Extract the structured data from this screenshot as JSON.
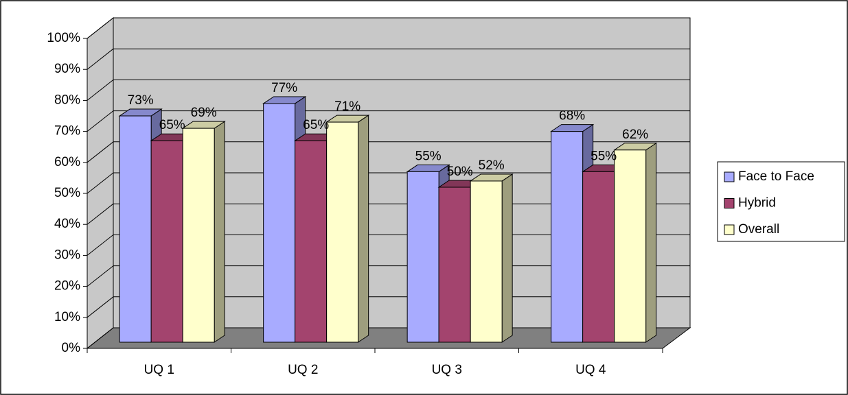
{
  "chart_data": {
    "type": "bar3d",
    "categories": [
      "UQ 1",
      "UQ 2",
      "UQ 3",
      "UQ 4"
    ],
    "series": [
      {
        "name": "Face to Face",
        "color": "#a8abff",
        "values": [
          73,
          77,
          55,
          68
        ],
        "value_labels": [
          "73%",
          "77%",
          "55%",
          "68%"
        ]
      },
      {
        "name": "Hybrid",
        "color": "#a3446e",
        "values": [
          65,
          65,
          50,
          55
        ],
        "value_labels": [
          "65%",
          "65%",
          "50%",
          "55%"
        ]
      },
      {
        "name": "Overall",
        "color": "#ffffcc",
        "values": [
          69,
          71,
          52,
          62
        ],
        "value_labels": [
          "69%",
          "71%",
          "52%",
          "62%"
        ]
      }
    ],
    "ylim": [
      0,
      100
    ],
    "yticks": [
      {
        "value": 0,
        "label": "0%"
      },
      {
        "value": 10,
        "label": "10%"
      },
      {
        "value": 20,
        "label": "20%"
      },
      {
        "value": 30,
        "label": "30%"
      },
      {
        "value": 40,
        "label": "40%"
      },
      {
        "value": 50,
        "label": "50%"
      },
      {
        "value": 60,
        "label": "60%"
      },
      {
        "value": 70,
        "label": "70%"
      },
      {
        "value": 80,
        "label": "80%"
      },
      {
        "value": 90,
        "label": "90%"
      },
      {
        "value": 100,
        "label": "100%"
      }
    ],
    "grid": true,
    "legend": "right"
  }
}
